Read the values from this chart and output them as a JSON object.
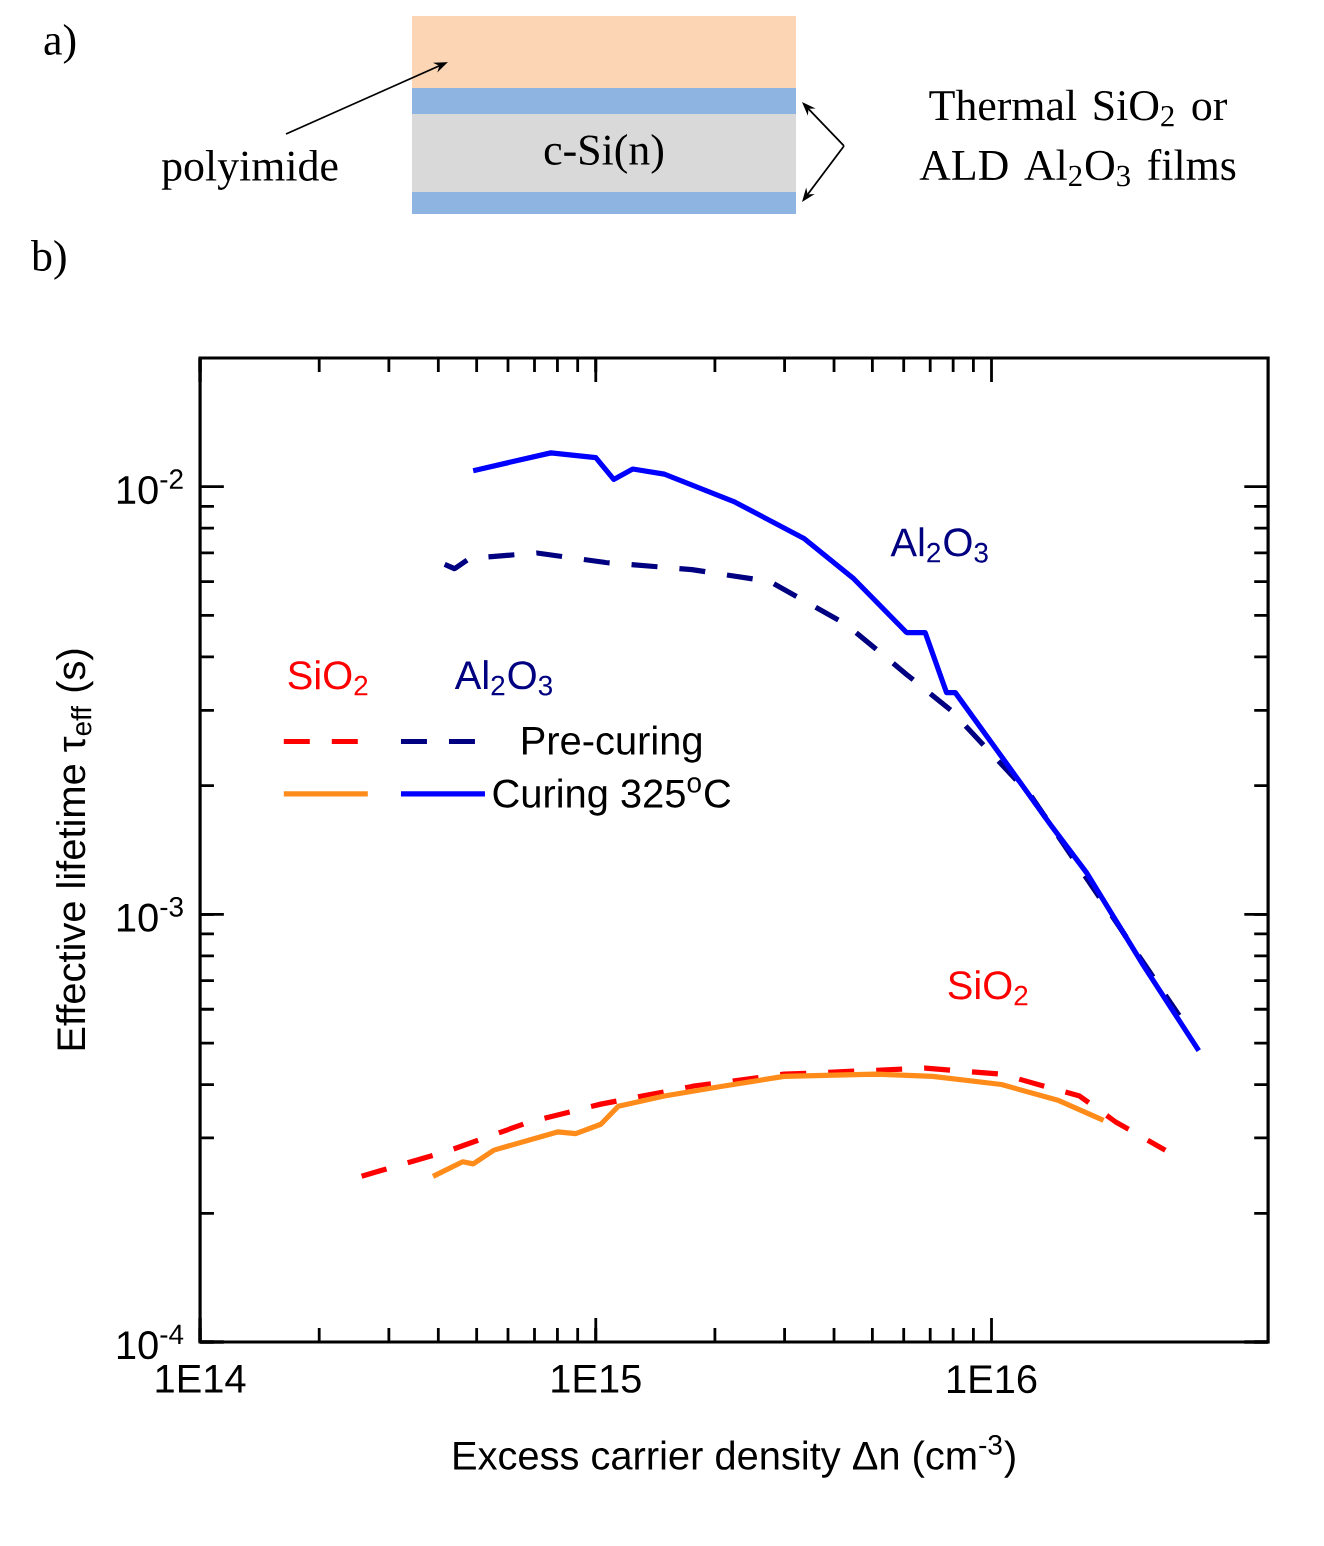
{
  "chart_data": [
    {
      "type": "other",
      "title": "a)",
      "annotations": [
        "polyimide",
        "c-Si(n)",
        "Thermal SiO$_{2}$ or ALD Al$_{2}$O$_{3}$ films"
      ]
    },
    {
      "type": "line",
      "title": "b)",
      "xlabel": "Excess carrier density Δn (cm$^{-3}$)",
      "ylabel": "Effective lifetime  τ$_{eff}$ (s)",
      "log": "xy",
      "xlim": [
        100000000000000.0,
        5e+16
      ],
      "ylim": [
        0.0001,
        0.02
      ],
      "xticks": [
        {
          "value": 100000000000000.0,
          "label": "1E14"
        },
        {
          "value": 1000000000000000.0,
          "label": "1E15"
        },
        {
          "value": 1e+16,
          "label": "1E16"
        }
      ],
      "yticks": [
        {
          "value": 0.0001,
          "label": "10$^{-4}$"
        },
        {
          "value": 0.001,
          "label": "10$^{-3}$"
        },
        {
          "value": 0.01,
          "label": "10$^{-2}$"
        }
      ],
      "legend": "top left",
      "annotations": [
        "SiO$_{2}$",
        "Al$_{2}$O$_{3}$",
        "Al$_{2}$O$_{3}$",
        "SiO$_{2}$"
      ],
      "series": [
        {
          "color": "#ff0000",
          "line_style": "dashed",
          "x": [
            256000000000000.0,
            288000000000000.0,
            415000000000000.0,
            680000000000000.0,
            1030000000000000.0,
            1750000000000000.0,
            2990000000000000.0,
            5100000000000000.0,
            6800000000000000.0,
            1.06e+16,
            1.67e+16,
            2.06e+16,
            2.75e+16
          ],
          "values": [
            0.000244,
            0.000252,
            0.000278,
            0.000327,
            0.00036,
            0.000396,
            0.000423,
            0.000432,
            0.000437,
            0.000423,
            0.000376,
            0.000327,
            0.000281
          ]
        },
        {
          "name": "Pre-curing",
          "color": "#000080",
          "line_style": "dashed",
          "x": [
            415000000000000.0,
            440000000000000.0,
            480000000000000.0,
            710000000000000.0,
            1060000000000000.0,
            1750000000000000.0,
            2760000000000000.0,
            4300000000000000.0,
            6100000000000000.0,
            7900000000000000.0,
            1.26e+16,
            2.98e+16
          ],
          "values": [
            0.00658,
            0.00643,
            0.0068,
            0.007,
            0.00665,
            0.0064,
            0.006,
            0.00476,
            0.00364,
            0.003,
            0.00189,
            0.00058
          ]
        },
        {
          "color": "#ff8c1a",
          "line_style": "solid",
          "x": [
            388000000000000.0,
            461000000000000.0,
            490000000000000.0,
            553000000000000.0,
            800000000000000.0,
            890000000000000.0,
            1030000000000000.0,
            1140000000000000.0,
            1490000000000000.0,
            2070000000000000.0,
            2990000000000000.0,
            5100000000000000.0,
            7100000000000000.0,
            1.06e+16,
            1.48e+16,
            1.92e+16
          ],
          "values": [
            0.000244,
            0.000264,
            0.000261,
            0.000281,
            0.00031,
            0.000307,
            0.000323,
            0.000356,
            0.000376,
            0.000396,
            0.000418,
            0.000423,
            0.000418,
            0.0004,
            0.000367,
            0.00033
          ]
        },
        {
          "name": "Curing 325$^{o}$C",
          "color": "#0000ff",
          "line_style": "solid",
          "x": [
            490000000000000.0,
            770000000000000.0,
            1000000000000000.0,
            1110000000000000.0,
            1240000000000000.0,
            1490000000000000.0,
            2250000000000000.0,
            3360000000000000.0,
            4480000000000000.0,
            6100000000000000.0,
            6800000000000000.0,
            7700000000000000.0,
            8100000000000000.0,
            1.06e+16,
            1.41e+16,
            1.74e+16,
            2.42e+16,
            3.34e+16
          ],
          "values": [
            0.0109,
            0.012,
            0.0117,
            0.0104,
            0.011,
            0.0107,
            0.0092,
            0.00757,
            0.0061,
            0.00456,
            0.00456,
            0.0033,
            0.0033,
            0.00234,
            0.00162,
            0.00125,
            0.00076,
            0.00048
          ]
        }
      ]
    }
  ]
}
